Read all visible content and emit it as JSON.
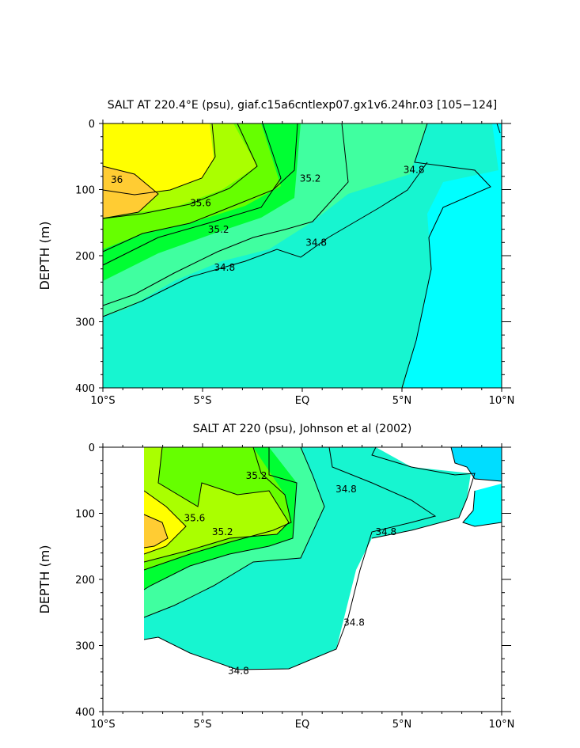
{
  "chart_data": [
    {
      "type": "contour",
      "title": "SALT AT 220.4°E (psu), giaf.c15a6cntlexp07.gx1v6.24hr.03 [105−124]",
      "ylabel": "DEPTH (m)",
      "xlim": [
        -10,
        10
      ],
      "ylim": [
        400,
        0
      ],
      "x_ticks": [
        {
          "value": -10,
          "label": "10°S"
        },
        {
          "value": -5,
          "label": "5°S"
        },
        {
          "value": 0,
          "label": "EQ"
        },
        {
          "value": 5,
          "label": "5°N"
        },
        {
          "value": 10,
          "label": "10°N"
        }
      ],
      "y_ticks": [
        0,
        100,
        200,
        300,
        400
      ],
      "levels": [
        34.6,
        34.8,
        35.0,
        35.2,
        35.4,
        35.6,
        35.8,
        36.0
      ],
      "contour_labels": [
        {
          "text": "36",
          "x": -9.3,
          "y": 90
        },
        {
          "text": "35.6",
          "x": -5.1,
          "y": 125
        },
        {
          "text": "35.2",
          "x": -4.2,
          "y": 165
        },
        {
          "text": "35.2",
          "x": 0.4,
          "y": 88
        },
        {
          "text": "34.8",
          "x": -3.9,
          "y": 223
        },
        {
          "text": "34.8",
          "x": 0.7,
          "y": 185
        },
        {
          "text": "34.8",
          "x": 5.6,
          "y": 75
        }
      ]
    },
    {
      "type": "contour",
      "title": "SALT AT 220 (psu), Johnson et al (2002)",
      "ylabel": "DEPTH (m)",
      "xlim": [
        -10,
        10
      ],
      "ylim": [
        400,
        0
      ],
      "data_xlim": [
        -8,
        10
      ],
      "x_ticks": [
        {
          "value": -10,
          "label": "10°S"
        },
        {
          "value": -5,
          "label": "5°S"
        },
        {
          "value": 0,
          "label": "EQ"
        },
        {
          "value": 5,
          "label": "5°N"
        },
        {
          "value": 10,
          "label": "10°N"
        }
      ],
      "y_ticks": [
        0,
        100,
        200,
        300,
        400
      ],
      "levels": [
        34.4,
        34.6,
        34.8,
        35.0,
        35.2,
        35.4,
        35.6,
        35.8
      ],
      "contour_labels": [
        {
          "text": "35.2",
          "x": -2.3,
          "y": 48
        },
        {
          "text": "35.6",
          "x": -5.4,
          "y": 112
        },
        {
          "text": "35.2",
          "x": -4.0,
          "y": 133
        },
        {
          "text": "34.8",
          "x": 2.2,
          "y": 68
        },
        {
          "text": "34.8",
          "x": 4.2,
          "y": 133
        },
        {
          "text": "34.8",
          "x": 2.6,
          "y": 270
        },
        {
          "text": "34.8",
          "x": -3.2,
          "y": 343
        }
      ]
    }
  ]
}
